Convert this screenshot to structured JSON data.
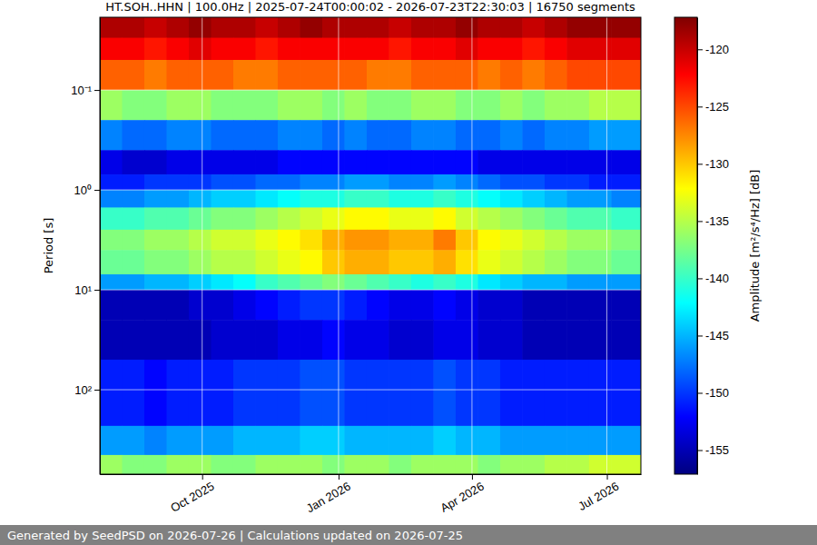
{
  "chart_data": {
    "type": "heatmap",
    "title": "HT.SOH..HHN | 100.0Hz | 2025-07-24T00:00:02 - 2026-07-23T22:30:03 | 16750 segments",
    "y_label": "Period [s]",
    "footer": "Generated by SeedPSD on 2026-07-26 | Calculations updated on 2026-07-25",
    "log": "y",
    "grid": true,
    "xlim": [
      "2025-07-24T00:00:02",
      "2026-07-23T22:30:03"
    ],
    "xticks": [
      {
        "value": "2025-10-01",
        "label": "Oct 2025"
      },
      {
        "value": "2026-01-01",
        "label": "Jan 2026"
      },
      {
        "value": "2026-04-01",
        "label": "Apr 2026"
      },
      {
        "value": "2026-07-01",
        "label": "Jul 2026"
      }
    ],
    "ylim": [
      0.0187,
      700
    ],
    "yticks": [
      {
        "value": 0.1,
        "label": "10⁻¹"
      },
      {
        "value": 1,
        "label": "10⁰"
      },
      {
        "value": 10,
        "label": "10¹"
      },
      {
        "value": 100,
        "label": "10²"
      }
    ],
    "x_edges": [
      "2025-07-24T00:00:02",
      "2025-08-08T00:00:00",
      "2025-08-23T00:00:00",
      "2025-09-07T00:00:00",
      "2025-09-22T00:00:00",
      "2025-10-07T00:00:00",
      "2025-10-22T00:00:00",
      "2025-11-06T00:00:00",
      "2025-11-21T00:00:00",
      "2025-12-06T00:00:00",
      "2025-12-21T00:00:00",
      "2026-01-05T00:00:00",
      "2026-01-20T00:00:00",
      "2026-02-04T00:00:00",
      "2026-02-19T00:00:00",
      "2026-03-06T00:00:00",
      "2026-03-21T00:00:00",
      "2026-04-05T00:00:00",
      "2026-04-20T00:00:00",
      "2026-05-05T00:00:00",
      "2026-05-20T00:00:00",
      "2026-06-04T00:00:00",
      "2026-06-19T00:00:00",
      "2026-07-04T00:00:00",
      "2026-07-23T22:30:03"
    ],
    "y_edges": [
      0.0187,
      0.03,
      0.05,
      0.1,
      0.2,
      0.4,
      0.7,
      1,
      1.5,
      2.5,
      4,
      7,
      10,
      20,
      50,
      230,
      450,
      700
    ],
    "cells": [
      [
        -119,
        -119,
        -120,
        -119,
        -118,
        -119,
        -119,
        -120,
        -119,
        -118,
        -119,
        -119,
        -119,
        -120,
        -119,
        -119,
        -118,
        -119,
        -119,
        -120,
        -119,
        -118,
        -118,
        -118
      ],
      [
        -122,
        -122,
        -123,
        -122,
        -121,
        -122,
        -122,
        -123,
        -122,
        -122,
        -122,
        -122,
        -122,
        -123,
        -122,
        -122,
        -121,
        -122,
        -122,
        -123,
        -122,
        -121,
        -121,
        -121
      ],
      [
        -126,
        -126,
        -127,
        -126,
        -126,
        -126,
        -127,
        -127,
        -126,
        -126,
        -126,
        -126,
        -127,
        -127,
        -126,
        -126,
        -126,
        -127,
        -126,
        -127,
        -126,
        -125,
        -125,
        -125
      ],
      [
        -136,
        -137,
        -137,
        -136,
        -136,
        -137,
        -137,
        -137,
        -136,
        -136,
        -137,
        -136,
        -137,
        -137,
        -136,
        -136,
        -137,
        -137,
        -136,
        -137,
        -136,
        -136,
        -135,
        -135
      ],
      [
        -147,
        -148,
        -148,
        -147,
        -147,
        -148,
        -148,
        -148,
        -147,
        -147,
        -148,
        -147,
        -148,
        -148,
        -147,
        -147,
        -148,
        -148,
        -147,
        -148,
        -147,
        -147,
        -146,
        -146
      ],
      [
        -153,
        -154,
        -154,
        -153,
        -153,
        -153,
        -153,
        -153,
        -152,
        -152,
        -152,
        -152,
        -152,
        -152,
        -152,
        -152,
        -152,
        -153,
        -153,
        -153,
        -153,
        -153,
        -153,
        -153
      ],
      [
        -151,
        -151,
        -150,
        -150,
        -150,
        -149,
        -149,
        -148,
        -148,
        -147,
        -147,
        -146,
        -146,
        -147,
        -147,
        -146,
        -147,
        -148,
        -149,
        -149,
        -150,
        -150,
        -151,
        -151
      ],
      [
        -147,
        -147,
        -146,
        -146,
        -145,
        -144,
        -144,
        -143,
        -142,
        -141,
        -141,
        -140,
        -140,
        -141,
        -141,
        -140,
        -141,
        -142,
        -143,
        -144,
        -145,
        -146,
        -146,
        -147
      ],
      [
        -140,
        -140,
        -139,
        -139,
        -138,
        -137,
        -137,
        -136,
        -135,
        -134,
        -133,
        -132,
        -132,
        -133,
        -133,
        -132,
        -134,
        -135,
        -136,
        -137,
        -138,
        -139,
        -139,
        -140
      ],
      [
        -137,
        -137,
        -136,
        -136,
        -135,
        -134,
        -134,
        -133,
        -132,
        -131,
        -129,
        -128,
        -128,
        -129,
        -129,
        -127,
        -130,
        -132,
        -133,
        -134,
        -135,
        -136,
        -136,
        -137
      ],
      [
        -138,
        -138,
        -137,
        -137,
        -136,
        -135,
        -135,
        -134,
        -133,
        -132,
        -130,
        -129,
        -129,
        -130,
        -130,
        -129,
        -131,
        -133,
        -134,
        -135,
        -136,
        -137,
        -137,
        -138
      ],
      [
        -146,
        -146,
        -145,
        -145,
        -144,
        -143,
        -142,
        -140,
        -139,
        -138,
        -137,
        -138,
        -139,
        -140,
        -141,
        -140,
        -141,
        -143,
        -144,
        -145,
        -145,
        -146,
        -146,
        -146
      ],
      [
        -155,
        -155,
        -155,
        -155,
        -154,
        -154,
        -153,
        -152,
        -151,
        -150,
        -150,
        -151,
        -152,
        -153,
        -153,
        -152,
        -153,
        -154,
        -154,
        -155,
        -155,
        -155,
        -155,
        -155
      ],
      [
        -155,
        -155,
        -155,
        -155,
        -155,
        -154,
        -154,
        -154,
        -153,
        -153,
        -152,
        -153,
        -153,
        -154,
        -154,
        -153,
        -153,
        -154,
        -154,
        -155,
        -155,
        -155,
        -155,
        -155
      ],
      [
        -151,
        -151,
        -152,
        -151,
        -151,
        -151,
        -150,
        -150,
        -150,
        -149,
        -149,
        -150,
        -150,
        -150,
        -150,
        -149,
        -150,
        -150,
        -151,
        -151,
        -151,
        -151,
        -151,
        -151
      ],
      [
        -146,
        -146,
        -147,
        -146,
        -146,
        -146,
        -145,
        -145,
        -145,
        -144,
        -144,
        -145,
        -145,
        -145,
        -145,
        -144,
        -145,
        -145,
        -146,
        -146,
        -146,
        -146,
        -146,
        -146
      ],
      [
        -136,
        -137,
        -137,
        -136,
        -136,
        -137,
        -137,
        -136,
        -136,
        -136,
        -137,
        -136,
        -136,
        -137,
        -136,
        -136,
        -136,
        -137,
        -136,
        -136,
        -135,
        -135,
        -134,
        -134
      ]
    ],
    "colorbar": {
      "label": "Amplitude [m²/s⁴/Hz] [dB]",
      "range": [
        -157.1,
        -117.2
      ],
      "ticks": [
        -155,
        -150,
        -145,
        -140,
        -135,
        -130,
        -125,
        -120
      ]
    }
  }
}
